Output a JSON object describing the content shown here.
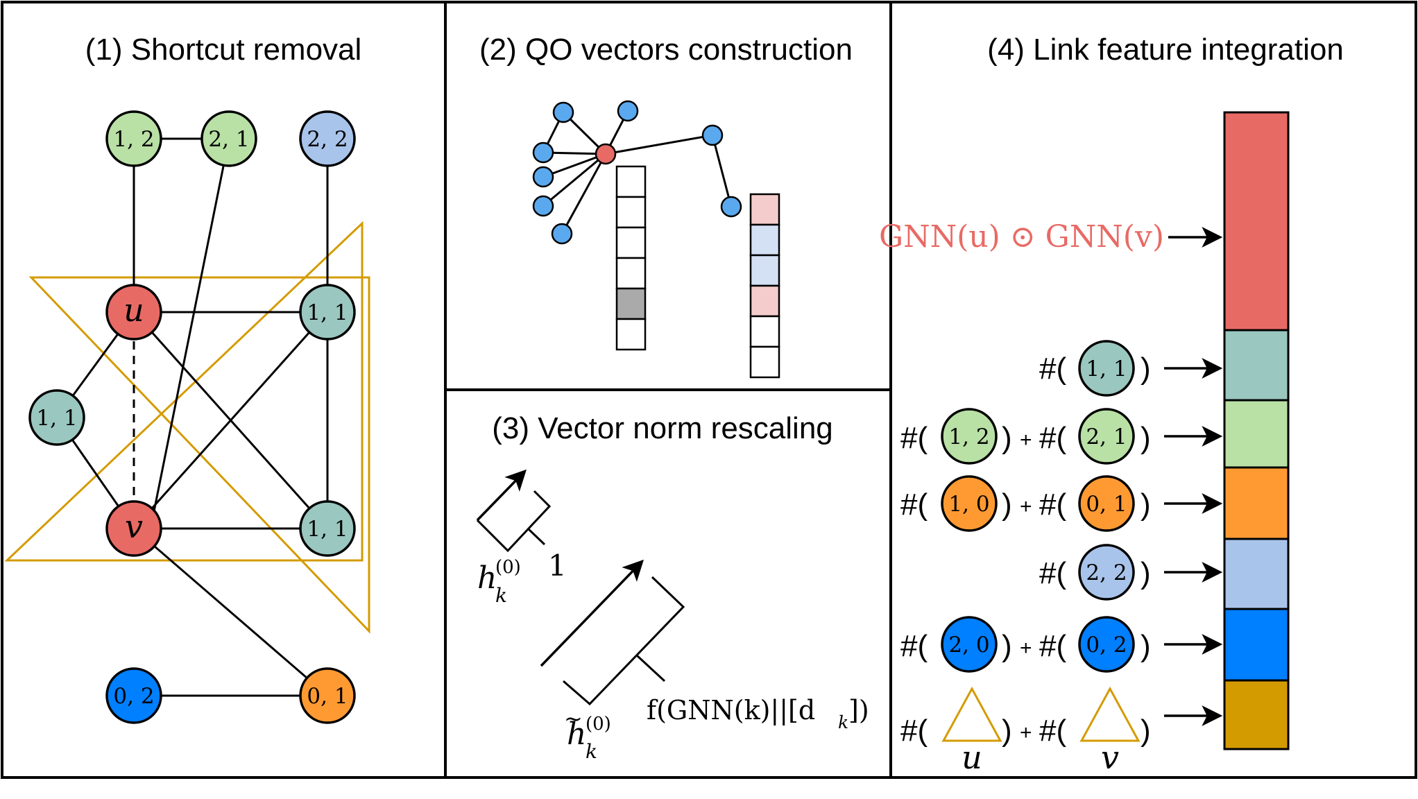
{
  "colors": {
    "red": "#e86a65",
    "light_green": "#b9e0a5",
    "teal": "#9ac7bf",
    "light_blue": "#a9c4eb",
    "orange": "#ff9a33",
    "blue": "#007fff",
    "gold": "#d49b00",
    "small_node_blue": "#5aa9ee",
    "gray_cell": "#aaaaaa",
    "pink_cell": "#f4cccc",
    "pale_blue_cell": "#d4e1f5"
  },
  "panel1": {
    "title": "(1) Shortcut removal",
    "nodes": {
      "n12": "1, 2",
      "n21": "2, 1",
      "n22": "2, 2",
      "u": "u",
      "n11_top": "1, 1",
      "n11_left": "1, 1",
      "v": "v",
      "n11_bottom": "1, 1",
      "n02": "0, 2",
      "n01": "0, 1"
    }
  },
  "panel2": {
    "title": "(2) QO vectors construction"
  },
  "panel3": {
    "title": "(3) Vector norm rescaling",
    "h_base": "h",
    "h_sub": "k",
    "h_sup": "(0)",
    "norm_one": "1",
    "f_label": "f(GNN(k)||[d",
    "f_label_sub": "k",
    "f_label_end": "])"
  },
  "panel4": {
    "title": "(4)  Link feature integration",
    "gnn_label": "GNN(u) ⊙ GNN(v)",
    "hash": "#(",
    "close": ")",
    "plus": "+",
    "rows": {
      "r1_a": "1, 1",
      "r2_a": "1, 2",
      "r2_b": "2, 1",
      "r3_a": "1, 0",
      "r3_b": "0, 1",
      "r4_a": "2, 2",
      "r5_a": "2, 0",
      "r5_b": "0, 2"
    },
    "tri_u": "u",
    "tri_v": "v"
  }
}
